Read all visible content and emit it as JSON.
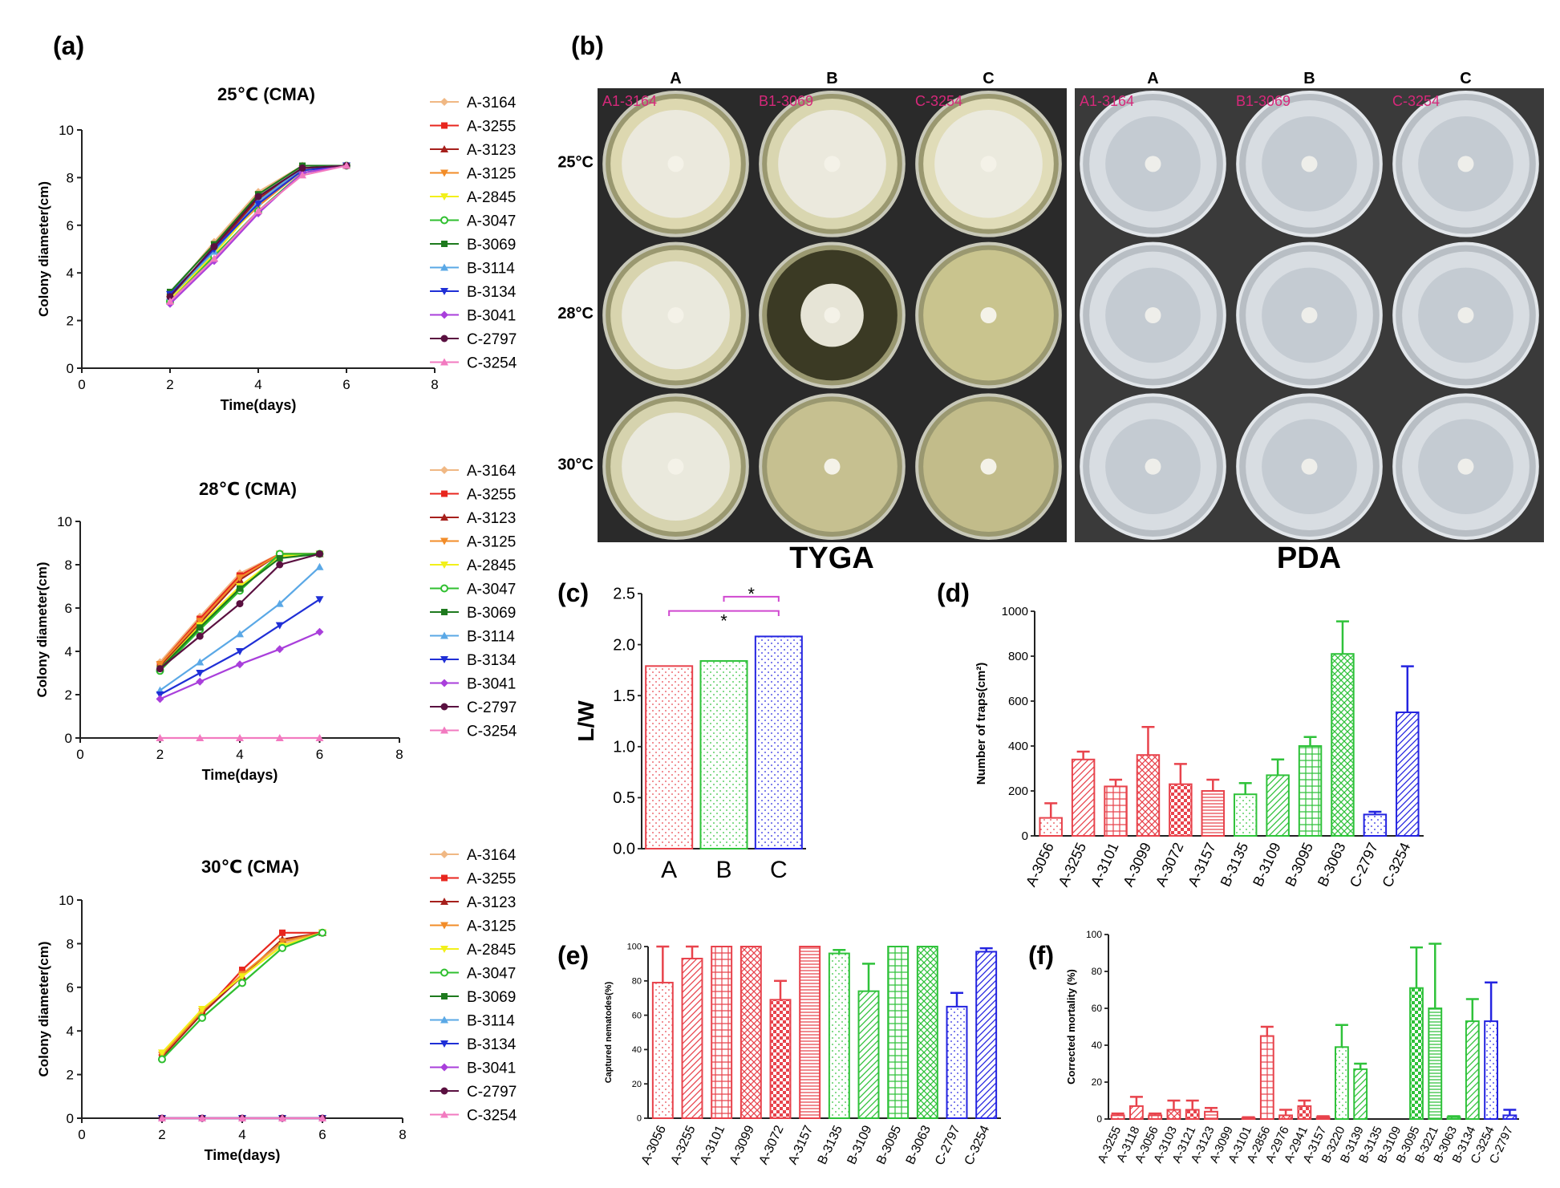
{
  "panel_letters": [
    "(a)",
    "(b)",
    "(c)",
    "(d)",
    "(e)",
    "(f)"
  ],
  "strain_legend": [
    "A-3164",
    "A-3255",
    "A-3123",
    "A-3125",
    "A-2845",
    "A-3047",
    "B-3069",
    "B-3114",
    "B-3134",
    "B-3041",
    "C-2797",
    "C-3254"
  ],
  "legend_colors": [
    "#f0b884",
    "#e8261e",
    "#a6201c",
    "#f28c28",
    "#f2f01a",
    "#2fbf2f",
    "#1e7a1e",
    "#5aa8e6",
    "#1f2fd6",
    "#a93fdb",
    "#5a1040",
    "#f27ac0"
  ],
  "photo": {
    "columns": [
      "A",
      "B",
      "C"
    ],
    "rows": [
      "25°C",
      "28°C",
      "30°C"
    ],
    "strain_labels": [
      "A1-3164",
      "B1-3069",
      "C-3254"
    ],
    "media": [
      "TYGA",
      "PDA"
    ]
  },
  "chart_data": [
    {
      "id": "a25",
      "type": "line",
      "title": "25℃ (CMA)",
      "xlabel": "Time(days)",
      "ylabel": "Colony diameter(cm)",
      "xlim": [
        0,
        8
      ],
      "ylim": [
        0,
        10
      ],
      "xticks": [
        "0",
        "2",
        "4",
        "6",
        "8"
      ],
      "yticks": [
        "0",
        "2",
        "4",
        "6",
        "8",
        "10"
      ],
      "x": [
        2,
        3,
        4,
        5,
        6
      ],
      "series": [
        {
          "name": "A-3164",
          "values": [
            3.1,
            5.3,
            7.4,
            8.5,
            8.5
          ]
        },
        {
          "name": "A-3255",
          "values": [
            3.0,
            5.1,
            7.0,
            8.4,
            8.5
          ]
        },
        {
          "name": "A-3123",
          "values": [
            3.0,
            5.0,
            7.1,
            8.4,
            8.5
          ]
        },
        {
          "name": "A-3125",
          "values": [
            2.9,
            5.0,
            6.8,
            8.3,
            8.5
          ]
        },
        {
          "name": "A-2845",
          "values": [
            2.9,
            4.8,
            6.9,
            8.3,
            8.5
          ]
        },
        {
          "name": "A-3047",
          "values": [
            2.8,
            4.7,
            6.6,
            8.2,
            8.5
          ]
        },
        {
          "name": "B-3069",
          "values": [
            3.2,
            5.2,
            7.3,
            8.5,
            8.5
          ]
        },
        {
          "name": "B-3114",
          "values": [
            3.0,
            4.9,
            7.0,
            8.4,
            8.5
          ]
        },
        {
          "name": "B-3134",
          "values": [
            3.1,
            5.0,
            6.9,
            8.3,
            8.5
          ]
        },
        {
          "name": "B-3041",
          "values": [
            2.7,
            4.5,
            6.5,
            8.2,
            8.5
          ]
        },
        {
          "name": "C-2797",
          "values": [
            3.0,
            5.1,
            7.2,
            8.4,
            8.5
          ]
        },
        {
          "name": "C-3254",
          "values": [
            2.8,
            4.6,
            6.6,
            8.1,
            8.5
          ]
        }
      ]
    },
    {
      "id": "a28",
      "type": "line",
      "title": "28℃ (CMA)",
      "xlabel": "Time(days)",
      "ylabel": "Colony diameter(cm)",
      "xlim": [
        0,
        8
      ],
      "ylim": [
        0,
        10
      ],
      "xticks": [
        "0",
        "2",
        "4",
        "6",
        "8"
      ],
      "yticks": [
        "0",
        "2",
        "4",
        "6",
        "8",
        "10"
      ],
      "x": [
        2,
        3,
        4,
        5,
        6
      ],
      "series": [
        {
          "name": "A-3164",
          "values": [
            3.5,
            5.6,
            7.6,
            8.5,
            8.5
          ]
        },
        {
          "name": "A-3255",
          "values": [
            3.4,
            5.5,
            7.5,
            8.5,
            8.5
          ]
        },
        {
          "name": "A-3123",
          "values": [
            3.3,
            5.3,
            7.3,
            8.5,
            8.5
          ]
        },
        {
          "name": "A-3125",
          "values": [
            3.4,
            5.4,
            7.4,
            8.5,
            8.5
          ]
        },
        {
          "name": "A-2845",
          "values": [
            3.2,
            5.2,
            7.0,
            8.4,
            8.5
          ]
        },
        {
          "name": "A-3047",
          "values": [
            3.1,
            5.0,
            6.8,
            8.5,
            8.5
          ]
        },
        {
          "name": "B-3069",
          "values": [
            3.2,
            5.1,
            6.9,
            8.3,
            8.5
          ]
        },
        {
          "name": "B-3114",
          "values": [
            2.2,
            3.5,
            4.8,
            6.2,
            7.9
          ]
        },
        {
          "name": "B-3134",
          "values": [
            2.0,
            3.0,
            4.0,
            5.2,
            6.4
          ]
        },
        {
          "name": "B-3041",
          "values": [
            1.8,
            2.6,
            3.4,
            4.1,
            4.9
          ]
        },
        {
          "name": "C-2797",
          "values": [
            3.2,
            4.7,
            6.2,
            8.0,
            8.5
          ]
        },
        {
          "name": "C-3254",
          "values": [
            0,
            0,
            0,
            0,
            0
          ]
        }
      ]
    },
    {
      "id": "a30",
      "type": "line",
      "title": "30℃ (CMA)",
      "xlabel": "Time(days)",
      "ylabel": "Colony diameter(cm)",
      "xlim": [
        0,
        8
      ],
      "ylim": [
        0,
        10
      ],
      "xticks": [
        "0",
        "2",
        "4",
        "6",
        "8"
      ],
      "yticks": [
        "0",
        "2",
        "4",
        "6",
        "8",
        "10"
      ],
      "x": [
        2,
        3,
        4,
        5,
        6
      ],
      "series": [
        {
          "name": "A-3164",
          "values": [
            2.9,
            4.9,
            6.6,
            8.0,
            8.5
          ]
        },
        {
          "name": "A-3255",
          "values": [
            2.8,
            4.8,
            6.8,
            8.5,
            8.5
          ]
        },
        {
          "name": "A-3123",
          "values": [
            2.8,
            4.8,
            6.5,
            8.2,
            8.5
          ]
        },
        {
          "name": "A-3125",
          "values": [
            2.9,
            4.9,
            6.6,
            8.1,
            8.5
          ]
        },
        {
          "name": "A-2845",
          "values": [
            3.0,
            5.0,
            6.5,
            7.9,
            8.5
          ]
        },
        {
          "name": "A-3047",
          "values": [
            2.7,
            4.6,
            6.2,
            7.8,
            8.5
          ]
        },
        {
          "name": "B-3069",
          "values": [
            0,
            0,
            0,
            0,
            0
          ]
        },
        {
          "name": "B-3114",
          "values": [
            0,
            0,
            0,
            0,
            0
          ]
        },
        {
          "name": "B-3134",
          "values": [
            0,
            0,
            0,
            0,
            0
          ]
        },
        {
          "name": "B-3041",
          "values": [
            0,
            0,
            0,
            0,
            0
          ]
        },
        {
          "name": "C-2797",
          "values": [
            0,
            0,
            0,
            0,
            0
          ]
        },
        {
          "name": "C-3254",
          "values": [
            0,
            0,
            0,
            0,
            0
          ]
        }
      ]
    },
    {
      "id": "c",
      "type": "bar",
      "ylabel": "L/W",
      "ylim": [
        0,
        2.5
      ],
      "yticks": [
        "0.0",
        "0.5",
        "1.0",
        "1.5",
        "2.0",
        "2.5"
      ],
      "categories": [
        "A",
        "B",
        "C"
      ],
      "values": [
        1.79,
        1.84,
        2.08
      ],
      "colors": [
        "#e8434c",
        "#2fc23a",
        "#2424e0"
      ],
      "significance": [
        "*",
        "*"
      ]
    },
    {
      "id": "d",
      "type": "bar",
      "ylabel": "Number of traps(cm²)",
      "ylim": [
        0,
        1000
      ],
      "yticks": [
        "0",
        "200",
        "400",
        "600",
        "800",
        "1000"
      ],
      "categories": [
        "A-3056",
        "A-3255",
        "A-3101",
        "A-3099",
        "A-3072",
        "A-3157",
        "B-3135",
        "B-3109",
        "B-3095",
        "B-3063",
        "C-2797",
        "C-3254"
      ],
      "values": [
        80,
        340,
        220,
        360,
        230,
        200,
        185,
        270,
        400,
        810,
        95,
        550
      ],
      "errors": [
        65,
        35,
        30,
        125,
        90,
        50,
        50,
        70,
        40,
        145,
        12,
        205
      ],
      "groups": [
        "A",
        "A",
        "A",
        "A",
        "A",
        "A",
        "B",
        "B",
        "B",
        "B",
        "C",
        "C"
      ]
    },
    {
      "id": "e",
      "type": "bar",
      "ylabel": "Captured nematodes(%)",
      "ylim": [
        0,
        100
      ],
      "yticks": [
        "0",
        "20",
        "40",
        "60",
        "80",
        "100"
      ],
      "categories": [
        "A-3056",
        "A-3255",
        "A-3101",
        "A-3099",
        "A-3072",
        "A-3157",
        "B-3135",
        "B-3109",
        "B-3095",
        "B-3063",
        "C-2797",
        "C-3254"
      ],
      "values": [
        79,
        93,
        100,
        100,
        69,
        100,
        96,
        74,
        100,
        100,
        65,
        97
      ],
      "errors": [
        21,
        7,
        0,
        0,
        11,
        0,
        2,
        16,
        0,
        0,
        8,
        2
      ],
      "groups": [
        "A",
        "A",
        "A",
        "A",
        "A",
        "A",
        "B",
        "B",
        "B",
        "B",
        "C",
        "C"
      ]
    },
    {
      "id": "f",
      "type": "bar",
      "ylabel": "Corrected mortality (%)",
      "ylim": [
        0,
        100
      ],
      "yticks": [
        "0",
        "20",
        "40",
        "60",
        "80",
        "100"
      ],
      "categories": [
        "A-3255",
        "A-3118",
        "A-3056",
        "A-3103",
        "A-3121",
        "A-3123",
        "A-3099",
        "A-3101",
        "A-2856",
        "A-2976",
        "A-2941",
        "A-3157",
        "B-3220",
        "B-3139",
        "B-3135",
        "B-3109",
        "B-3095",
        "B-3221",
        "B-3063",
        "B-3134",
        "C-3254",
        "C-2797"
      ],
      "values": [
        2,
        7,
        2,
        5,
        5,
        4,
        0,
        0.5,
        45,
        2,
        7,
        1,
        39,
        27,
        0,
        0,
        71,
        60,
        1,
        53,
        53,
        2
      ],
      "errors": [
        1,
        5,
        1,
        5,
        5,
        2,
        0,
        0.5,
        5,
        3,
        3,
        0.5,
        12,
        3,
        0,
        0,
        22,
        35,
        0.5,
        12,
        21,
        3
      ],
      "groups": [
        "A",
        "A",
        "A",
        "A",
        "A",
        "A",
        "A",
        "A",
        "A",
        "A",
        "A",
        "A",
        "B",
        "B",
        "B",
        "B",
        "B",
        "B",
        "B",
        "B",
        "C",
        "C"
      ]
    }
  ]
}
